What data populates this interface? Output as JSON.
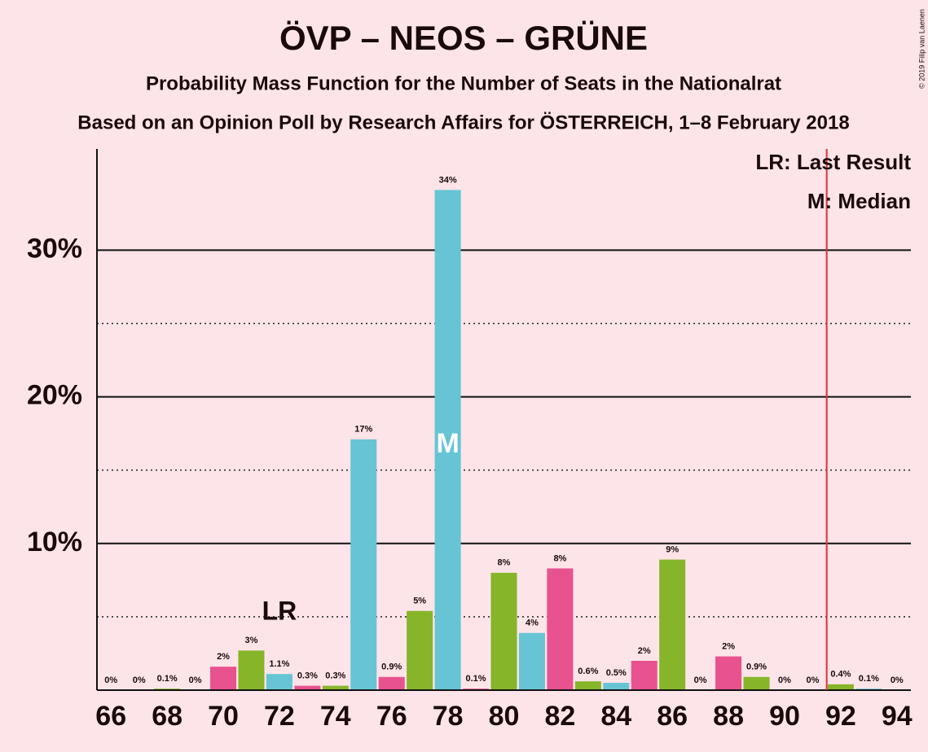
{
  "chart_data": {
    "type": "bar",
    "title": "ÖVP – NEOS – GRÜNE",
    "subtitle": "Probability Mass Function for the Number of Seats in the Nationalrat",
    "subtitle2": "Based on an Opinion Poll by Research Affairs for ÖSTERREICH, 1–8 February 2018",
    "copyright": "© 2019 Filip van Laenen",
    "x": [
      66,
      67,
      68,
      69,
      70,
      71,
      72,
      73,
      74,
      75,
      76,
      77,
      78,
      79,
      80,
      81,
      82,
      83,
      84,
      85,
      86,
      87,
      88,
      89,
      90,
      91,
      92,
      93,
      94
    ],
    "values": [
      0,
      0,
      0.1,
      0,
      1.6,
      2.7,
      1.1,
      0.3,
      0.3,
      17.1,
      0.9,
      5.4,
      34.1,
      0.1,
      8.0,
      3.9,
      8.3,
      0.6,
      0.5,
      2.0,
      8.9,
      0,
      2.3,
      0.9,
      0,
      0,
      0.4,
      0.1,
      0
    ],
    "value_labels": [
      "0%",
      "0%",
      "0.1%",
      "0%",
      "2%",
      "3%",
      "1.1%",
      "0.3%",
      "0.3%",
      "17%",
      "0.9%",
      "5%",
      "34%",
      "0.1%",
      "8%",
      "4%",
      "8%",
      "0.6%",
      "0.5%",
      "2%",
      "9%",
      "0%",
      "2%",
      "0.9%",
      "0%",
      "0%",
      "0.4%",
      "0.1%",
      "0%"
    ],
    "colors": [
      "#66c4d4",
      "#e8528e",
      "#86b52a",
      "#66c4d4",
      "#e8528e",
      "#86b52a",
      "#66c4d4",
      "#e8528e",
      "#86b52a",
      "#66c4d4",
      "#e8528e",
      "#86b52a",
      "#66c4d4",
      "#e8528e",
      "#86b52a",
      "#66c4d4",
      "#e8528e",
      "#86b52a",
      "#66c4d4",
      "#e8528e",
      "#86b52a",
      "#66c4d4",
      "#e8528e",
      "#86b52a",
      "#66c4d4",
      "#e8528e",
      "#86b52a",
      "#66c4d4",
      "#e8528e"
    ],
    "xlim": [
      65.5,
      94.5
    ],
    "xticks": [
      66,
      68,
      70,
      72,
      74,
      76,
      78,
      80,
      82,
      84,
      86,
      88,
      90,
      92,
      94
    ],
    "ylim": [
      0,
      36.9
    ],
    "yticks": [
      {
        "value": 10,
        "label": "10%"
      },
      {
        "value": 20,
        "label": "20%"
      },
      {
        "value": 30,
        "label": "30%"
      }
    ],
    "minor_yticks": [
      5,
      15,
      25
    ],
    "grid": true,
    "last_result": {
      "x": 72,
      "label": "LR"
    },
    "median": {
      "x": 78,
      "label": "M"
    },
    "majority_line": 91.5,
    "majority_color": "#e03030",
    "legend": [
      "LR: Last Result",
      "M: Median"
    ],
    "legend_position": "upper right"
  }
}
